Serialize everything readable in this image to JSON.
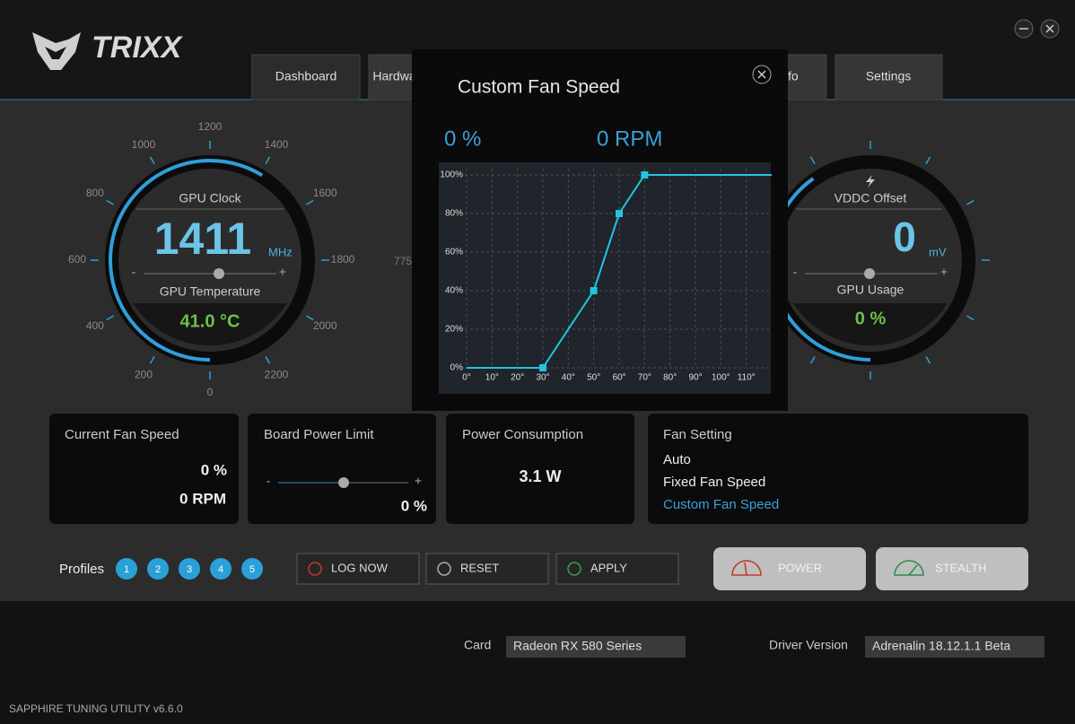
{
  "app": {
    "logo": "TRIXX",
    "tabs": [
      "Dashboard",
      "Hardware Monitor",
      "Info",
      "Settings"
    ]
  },
  "gpu_clock_gauge": {
    "ticks": [
      0,
      200,
      400,
      600,
      800,
      1000,
      1200,
      1400,
      1600,
      1800,
      2000,
      2200
    ],
    "label": "GPU Clock",
    "value": "1411",
    "unit": "MHz",
    "minus": "-",
    "plus": "+",
    "temp_label": "GPU Temperature",
    "temp": "41.0 °C"
  },
  "memory_gauge": {
    "tick": "775"
  },
  "vddc_gauge": {
    "label": "VDDC Offset",
    "value": "0",
    "unit": "mV",
    "minus": "-",
    "plus": "+",
    "usage_label": "GPU Usage",
    "usage": "0 %"
  },
  "custom_fan_dialog": {
    "title": "Custom Fan Speed",
    "fan_percent": "0 %",
    "fan_rpm": "0 RPM",
    "chart_data": {
      "type": "line",
      "x": [
        0,
        30,
        50,
        60,
        70,
        120
      ],
      "values": [
        0,
        0,
        40,
        80,
        100,
        100
      ],
      "color": "#22c4de",
      "xlim": [
        0,
        120
      ],
      "ylim": [
        0,
        100
      ],
      "grid": true,
      "xticks": [
        {
          "value": 0,
          "label": "0°"
        },
        {
          "value": 10,
          "label": "10°"
        },
        {
          "value": 20,
          "label": "20°"
        },
        {
          "value": 30,
          "label": "30°"
        },
        {
          "value": 40,
          "label": "40°"
        },
        {
          "value": 50,
          "label": "50°"
        },
        {
          "value": 60,
          "label": "60°"
        },
        {
          "value": 70,
          "label": "70°"
        },
        {
          "value": 80,
          "label": "80°"
        },
        {
          "value": 90,
          "label": "90°"
        },
        {
          "value": 100,
          "label": "100°"
        },
        {
          "value": 110,
          "label": "110°"
        }
      ],
      "yticks": [
        {
          "value": 0,
          "label": "0%"
        },
        {
          "value": 20,
          "label": "20%"
        },
        {
          "value": 40,
          "label": "40%"
        },
        {
          "value": 60,
          "label": "60%"
        },
        {
          "value": 80,
          "label": "80%"
        },
        {
          "value": 100,
          "label": "100%"
        }
      ]
    }
  },
  "cards": {
    "fan_speed": {
      "title": "Current Fan Speed",
      "percent": "0 %",
      "rpm": "0 RPM"
    },
    "power_limit": {
      "title": "Board Power Limit",
      "minus": "-",
      "plus": "+",
      "value": "0 %"
    },
    "power_consumption": {
      "title": "Power Consumption",
      "value": "3.1 W"
    },
    "fan_setting": {
      "title": "Fan Setting",
      "options": [
        "Auto",
        "Fixed Fan Speed",
        "Custom Fan Speed"
      ]
    }
  },
  "profiles": {
    "label": "Profiles",
    "items": [
      "1",
      "2",
      "3",
      "4",
      "5"
    ]
  },
  "buttons": [
    "LOG NOW",
    "RESET",
    "APPLY",
    "POWER",
    "STEALTH"
  ],
  "footer": {
    "card_label": "Card",
    "card": "Radeon RX 580 Series",
    "driver_label": "Driver Version",
    "driver": "Adrenalin 18.12.1.1 Beta",
    "version": "SAPPHIRE TUNING UTILITY v6.6.0"
  }
}
